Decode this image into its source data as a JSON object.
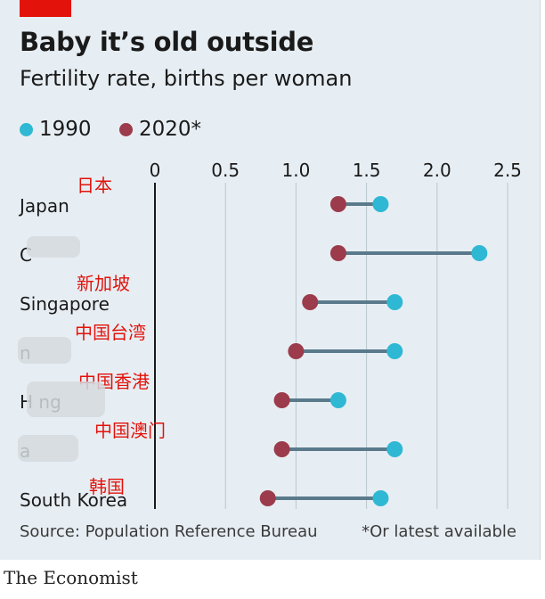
{
  "header": {
    "title": "Baby it’s old outside",
    "subtitle": "Fertility rate, births per woman"
  },
  "legend": [
    {
      "label": "1990",
      "color": "#2fb8d4"
    },
    {
      "label": "2020*",
      "color": "#9b3b4b"
    }
  ],
  "footer": {
    "source": "Source: Population Reference Bureau",
    "note": "*Or latest available",
    "brand": "The Economist"
  },
  "colors": {
    "accent_red": "#e3120b",
    "connector": "#5a7a8c",
    "gridline": "#b9c6cf"
  },
  "chart_data": {
    "type": "dumbbell",
    "title": "Baby it’s old outside",
    "subtitle": "Fertility rate, births per woman",
    "xlim": [
      0,
      2.5
    ],
    "xticks": [
      "0",
      "0.5",
      "1.0",
      "1.5",
      "2.0",
      "2.5"
    ],
    "grid": "vertical",
    "legend_position": "top-left",
    "categories": [
      "Japan",
      "C",
      "Singapore",
      "n",
      "H ng",
      "a",
      "South Korea"
    ],
    "annotations": [
      "日本",
      "",
      "新加坡",
      "中国台湾",
      "中国香港",
      "中国澳门",
      "韩国"
    ],
    "series": [
      {
        "name": "1990",
        "color": "#2fb8d4",
        "values": [
          1.6,
          2.3,
          1.7,
          1.7,
          1.3,
          1.7,
          1.6
        ]
      },
      {
        "name": "2020*",
        "color": "#9b3b4b",
        "values": [
          1.3,
          1.3,
          1.1,
          1.0,
          0.9,
          0.9,
          0.8
        ]
      }
    ]
  }
}
